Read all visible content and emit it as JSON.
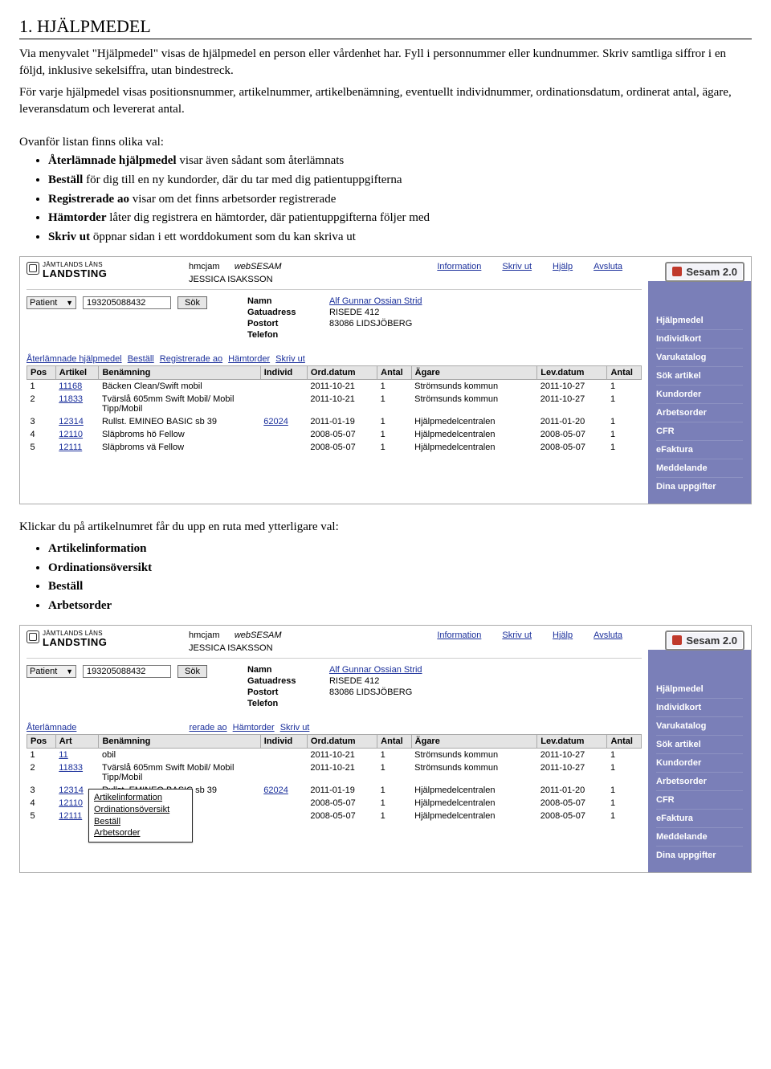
{
  "doc": {
    "heading": "1. HJÄLPMEDEL",
    "para1": "Via menyvalet \"Hjälpmedel\" visas de hjälpmedel en person eller vårdenhet har. Fyll i personnummer eller kundnummer. Skriv samtliga siffror i en följd, inklusive sekelsiffra, utan bindestreck.",
    "para2": "För varje hjälpmedel visas positionsnummer, artikelnummer, artikelbenämning, eventuellt individnummer, ordinationsdatum, ordinerat antal, ägare, leveransdatum och levererat antal.",
    "intro_bullets": "Ovanför listan finns olika val:",
    "bullets": [
      {
        "b": "Återlämnade hjälpmedel",
        "t": " visar även sådant som återlämnats"
      },
      {
        "b": "Beställ",
        "t": " för dig till en ny kundorder, där du tar med dig patientuppgifterna"
      },
      {
        "b": "Registrerade ao",
        "t": " visar om det finns arbetsorder registrerade"
      },
      {
        "b": "Hämtorder",
        "t": " låter dig registrera en hämtorder, där patientuppgifterna följer med"
      },
      {
        "b": "Skriv ut",
        "t": " öppnar sidan i ett worddokument som du kan skriva ut"
      }
    ],
    "para3": "Klickar du på artikelnumret får du upp en ruta med ytterligare val:",
    "bullets2": [
      "Artikelinformation",
      "Ordinationsöversikt",
      "Beställ",
      "Arbetsorder"
    ]
  },
  "hdr": {
    "brand_small": "JÄMTLANDS LÄNS",
    "brand_big": "LANDSTING",
    "user_short": "hmcjam",
    "app": "webSESAM",
    "user_full": "JESSICA ISAKSSON",
    "links": [
      "Information",
      "Skriv ut",
      "Hjälp",
      "Avsluta"
    ],
    "badge": "Sesam 2.0"
  },
  "search": {
    "type": "Patient",
    "value": "193205088432",
    "button": "Sök"
  },
  "info": {
    "labels": {
      "namn": "Namn",
      "gatuadress": "Gatuadress",
      "postort": "Postort",
      "telefon": "Telefon"
    },
    "namn": "Alf Gunnar Ossian Strid",
    "gatuadress": "RISEDE 412",
    "postort": "83086 LIDSJÖBERG",
    "telefon": ""
  },
  "actions": [
    "Återlämnade hjälpmedel",
    "Beställ",
    "Registrerade ao",
    "Hämtorder",
    "Skriv ut"
  ],
  "cols": [
    "Pos",
    "Artikel",
    "Benämning",
    "Individ",
    "Ord.datum",
    "Antal",
    "Ägare",
    "Lev.datum",
    "Antal"
  ],
  "rows": [
    {
      "pos": "1",
      "art": "11168",
      "ben": "Bäcken Clean/Swift mobil",
      "ind": "",
      "ord": "2011-10-21",
      "a1": "1",
      "aga": "Strömsunds kommun",
      "lev": "2011-10-27",
      "a2": "1"
    },
    {
      "pos": "2",
      "art": "11833",
      "ben": "Tvärslå 605mm Swift Mobil/ Mobil Tipp/Mobil",
      "ind": "",
      "ord": "2011-10-21",
      "a1": "1",
      "aga": "Strömsunds kommun",
      "lev": "2011-10-27",
      "a2": "1"
    },
    {
      "pos": "3",
      "art": "12314",
      "ben": "Rullst. EMINEO BASIC sb 39",
      "ind": "62024",
      "ord": "2011-01-19",
      "a1": "1",
      "aga": "Hjälpmedelcentralen",
      "lev": "2011-01-20",
      "a2": "1"
    },
    {
      "pos": "4",
      "art": "12110",
      "ben": "Släpbroms hö Fellow",
      "ind": "",
      "ord": "2008-05-07",
      "a1": "1",
      "aga": "Hjälpmedelcentralen",
      "lev": "2008-05-07",
      "a2": "1"
    },
    {
      "pos": "5",
      "art": "12111",
      "ben": "Släpbroms vä Fellow",
      "ind": "",
      "ord": "2008-05-07",
      "a1": "1",
      "aga": "Hjälpmedelcentralen",
      "lev": "2008-05-07",
      "a2": "1"
    }
  ],
  "side": [
    "Hjälpmedel",
    "Individkort",
    "Varukatalog",
    "Sök artikel",
    "Kundorder",
    "Arbetsorder",
    "CFR",
    "eFaktura",
    "Meddelande",
    "Dina uppgifter"
  ],
  "shot2": {
    "actions_visible": {
      "pre": "Återlämnade",
      "post": "rerade ao",
      "rest": [
        "Hämtorder",
        "Skriv ut"
      ]
    },
    "popup": [
      "Artikelinformation",
      "Ordinationsöversikt",
      "Beställ",
      "Arbetsorder"
    ],
    "rows": [
      {
        "pos": "1",
        "art": "11",
        "ben": "obil",
        "ind": "",
        "ord": "2011-10-21",
        "a1": "1",
        "aga": "Strömsunds kommun",
        "lev": "2011-10-27",
        "a2": "1"
      },
      {
        "pos": "2",
        "art": "11833",
        "ben": "Tvärslå 605mm Swift Mobil/ Mobil Tipp/Mobil",
        "ind": "",
        "ord": "2011-10-21",
        "a1": "1",
        "aga": "Strömsunds kommun",
        "lev": "2011-10-27",
        "a2": "1"
      },
      {
        "pos": "3",
        "art": "12314",
        "ben": "Rullst. EMINEO BASIC sb 39",
        "ind": "62024",
        "ord": "2011-01-19",
        "a1": "1",
        "aga": "Hjälpmedelcentralen",
        "lev": "2011-01-20",
        "a2": "1"
      },
      {
        "pos": "4",
        "art": "12110",
        "ben": "Släpbroms hö Fellow",
        "ind": "",
        "ord": "2008-05-07",
        "a1": "1",
        "aga": "Hjälpmedelcentralen",
        "lev": "2008-05-07",
        "a2": "1"
      },
      {
        "pos": "5",
        "art": "12111",
        "ben": "Släpbroms vä Fellow",
        "ind": "",
        "ord": "2008-05-07",
        "a1": "1",
        "aga": "Hjälpmedelcentralen",
        "lev": "2008-05-07",
        "a2": "1"
      }
    ]
  },
  "colors": {
    "sidebar": "#7a7fb8",
    "link": "#1a2f9b",
    "header_bg": "#e4e4e4",
    "border": "#aaa"
  }
}
